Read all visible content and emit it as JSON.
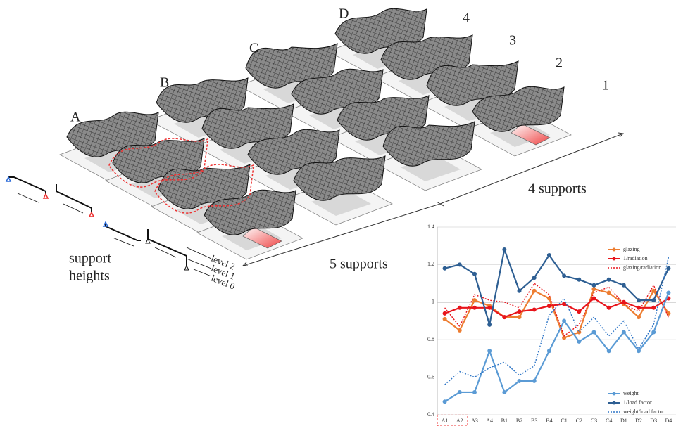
{
  "labels": {
    "rows": [
      "A",
      "B",
      "C",
      "D"
    ],
    "columns": [
      "4",
      "3",
      "2",
      "1"
    ],
    "supports_x": "4 supports",
    "supports_y": "5 supports",
    "support_heights": [
      "support",
      "heights"
    ],
    "levels": [
      "level 2",
      "level 1",
      "level 0"
    ]
  },
  "chart_data": {
    "type": "line",
    "categories": [
      "A1",
      "A2",
      "A3",
      "A4",
      "B1",
      "B2",
      "B3",
      "B4",
      "C1",
      "C2",
      "C3",
      "C4",
      "D1",
      "D2",
      "D3",
      "D4"
    ],
    "ylim": [
      0.4,
      1.4
    ],
    "yticks": [
      0.4,
      0.6,
      0.8,
      1,
      1.2,
      1.4
    ],
    "grid": true,
    "reference_line": 1,
    "series": [
      {
        "name": "glazing",
        "color": "#ed7d31",
        "dashed": false,
        "values": [
          0.91,
          0.85,
          1.01,
          0.98,
          0.92,
          0.92,
          1.06,
          1.02,
          0.81,
          0.84,
          1.07,
          1.05,
          0.99,
          0.92,
          1.06,
          0.94
        ]
      },
      {
        "name": "1/radiation",
        "color": "#e8141b",
        "dashed": false,
        "values": [
          0.94,
          0.97,
          0.97,
          0.97,
          0.92,
          0.95,
          0.96,
          0.98,
          0.99,
          0.95,
          1.02,
          0.97,
          1.0,
          0.97,
          0.97,
          1.02
        ]
      },
      {
        "name": "glazing/radiation",
        "color": "#e8141b",
        "dashed": true,
        "values": [
          0.97,
          0.87,
          1.04,
          1.01,
          1.0,
          0.97,
          1.1,
          1.04,
          0.82,
          0.88,
          1.05,
          1.08,
          0.99,
          0.95,
          1.09,
          0.92
        ]
      },
      {
        "name": "weight",
        "color": "#5b9bd5",
        "dashed": false,
        "values": [
          0.47,
          0.52,
          0.52,
          0.74,
          0.52,
          0.58,
          0.58,
          0.74,
          0.9,
          0.79,
          0.84,
          0.74,
          0.84,
          0.74,
          0.84,
          1.05
        ]
      },
      {
        "name": "1/load factor",
        "color": "#2e5f93",
        "dashed": false,
        "values": [
          1.18,
          1.2,
          1.15,
          0.88,
          1.28,
          1.06,
          1.13,
          1.25,
          1.14,
          1.12,
          1.09,
          1.12,
          1.09,
          1.01,
          1.01,
          1.18
        ]
      },
      {
        "name": "weight/load factor",
        "color": "#2e75c6",
        "dashed": true,
        "values": [
          0.56,
          0.63,
          0.6,
          0.65,
          0.68,
          0.61,
          0.66,
          0.93,
          1.02,
          0.84,
          0.92,
          0.82,
          0.9,
          0.75,
          0.88,
          1.24
        ]
      }
    ]
  }
}
